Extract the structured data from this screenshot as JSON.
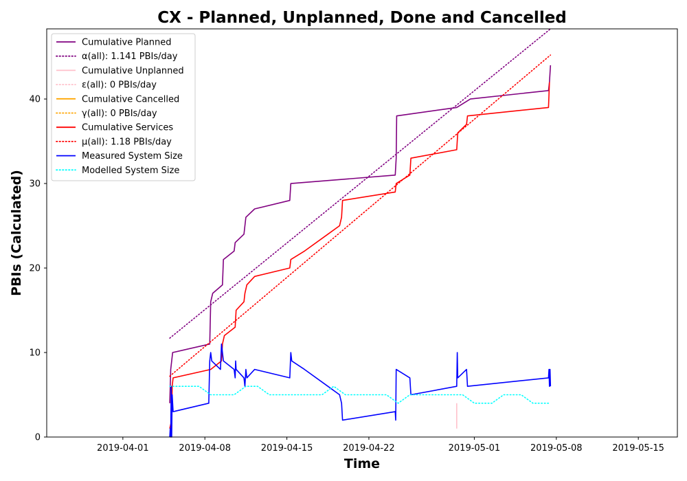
{
  "chart_data": {
    "type": "line",
    "title": "CX - Planned, Unplanned, Done  and Cancelled",
    "xlabel": "Time",
    "ylabel": "PBIs (Calculated)",
    "x_range": [
      "2019-03-25T12:00",
      "2019-05-18T08:00"
    ],
    "ylim": [
      0,
      48.3
    ],
    "x_ticks": [
      "2019-04-01",
      "2019-04-08",
      "2019-04-15",
      "2019-04-22",
      "2019-05-01",
      "2019-05-08",
      "2019-05-15"
    ],
    "y_ticks": [
      0,
      10,
      20,
      30,
      40
    ],
    "grid": false,
    "legend_position": "top-left",
    "series": [
      {
        "name": "Cumulative Planned",
        "color": "#800080",
        "style": "solid",
        "points": [
          [
            "2019-04-05T00:00",
            4
          ],
          [
            "2019-04-05T02:00",
            8
          ],
          [
            "2019-04-05T04:00",
            9
          ],
          [
            "2019-04-05T06:00",
            10
          ],
          [
            "2019-04-08T10:00",
            11
          ],
          [
            "2019-04-08T12:00",
            16
          ],
          [
            "2019-04-08T16:00",
            17
          ],
          [
            "2019-04-09T12:00",
            18
          ],
          [
            "2019-04-09T14:00",
            21
          ],
          [
            "2019-04-10T12:00",
            22
          ],
          [
            "2019-04-10T14:00",
            23
          ],
          [
            "2019-04-11T08:00",
            24
          ],
          [
            "2019-04-11T12:00",
            26
          ],
          [
            "2019-04-12T06:00",
            27
          ],
          [
            "2019-04-15T06:00",
            28
          ],
          [
            "2019-04-15T08:00",
            30
          ],
          [
            "2019-04-24T06:00",
            31
          ],
          [
            "2019-04-24T08:00",
            33
          ],
          [
            "2019-04-24T09:00",
            38
          ],
          [
            "2019-04-29T12:00",
            39
          ],
          [
            "2019-04-30T16:00",
            40
          ],
          [
            "2019-05-07T08:00",
            41
          ],
          [
            "2019-05-07T10:00",
            42
          ],
          [
            "2019-05-07T12:00",
            44
          ]
        ]
      },
      {
        "name": "α(all): 1.141 PBIs/day",
        "color": "#800080",
        "style": "dotted",
        "points": [
          [
            "2019-04-05T00:00",
            11.7
          ],
          [
            "2019-05-07T12:00",
            48.5
          ]
        ]
      },
      {
        "name": "Cumulative Unplanned",
        "color": "#ffc0cb",
        "style": "solid",
        "points": [
          [
            "2019-04-29T12:00",
            1
          ],
          [
            "2019-04-29T12:00",
            4
          ]
        ]
      },
      {
        "name": "ε(all): 0 PBIs/day",
        "color": "#ffc0cb",
        "style": "dotted",
        "points": []
      },
      {
        "name": "Cumulative Cancelled",
        "color": "#ffa500",
        "style": "solid",
        "points": []
      },
      {
        "name": "γ(all): 0 PBIs/day",
        "color": "#ffa500",
        "style": "dotted",
        "points": []
      },
      {
        "name": "Cumulative Services",
        "color": "#ff0000",
        "style": "solid",
        "points": [
          [
            "2019-04-05T00:00",
            1
          ],
          [
            "2019-04-05T04:00",
            2
          ],
          [
            "2019-04-05T05:00",
            6
          ],
          [
            "2019-04-05T07:00",
            7
          ],
          [
            "2019-04-08T12:00",
            8
          ],
          [
            "2019-04-09T10:00",
            9
          ],
          [
            "2019-04-09T12:00",
            11
          ],
          [
            "2019-04-09T16:00",
            12
          ],
          [
            "2019-04-10T14:00",
            13
          ],
          [
            "2019-04-10T16:00",
            15
          ],
          [
            "2019-04-11T08:00",
            16
          ],
          [
            "2019-04-11T10:00",
            17
          ],
          [
            "2019-04-11T14:00",
            18
          ],
          [
            "2019-04-12T06:00",
            19
          ],
          [
            "2019-04-15T06:00",
            20
          ],
          [
            "2019-04-15T08:00",
            21
          ],
          [
            "2019-04-16T12:00",
            22
          ],
          [
            "2019-04-18T12:00",
            24
          ],
          [
            "2019-04-19T12:00",
            25
          ],
          [
            "2019-04-19T16:00",
            26
          ],
          [
            "2019-04-19T18:00",
            28
          ],
          [
            "2019-04-24T06:00",
            29
          ],
          [
            "2019-04-24T08:00",
            30
          ],
          [
            "2019-04-25T12:00",
            31
          ],
          [
            "2019-04-25T14:00",
            33
          ],
          [
            "2019-04-29T12:00",
            34
          ],
          [
            "2019-04-29T14:00",
            36
          ],
          [
            "2019-04-30T08:00",
            37
          ],
          [
            "2019-04-30T10:00",
            38
          ],
          [
            "2019-05-07T08:00",
            39
          ],
          [
            "2019-05-07T10:00",
            42
          ]
        ]
      },
      {
        "name": "μ(all): 1.18 PBIs/day",
        "color": "#ff0000",
        "style": "dotted",
        "points": [
          [
            "2019-04-05T00:00",
            7.2
          ],
          [
            "2019-05-07T12:00",
            45.2
          ]
        ]
      },
      {
        "name": "Measured System Size",
        "color": "#0000ff",
        "style": "solid",
        "points": [
          [
            "2019-04-05T00:00",
            0
          ],
          [
            "2019-04-05T01:00",
            1
          ],
          [
            "2019-04-05T02:00",
            0
          ],
          [
            "2019-04-05T03:00",
            6
          ],
          [
            "2019-04-05T04:00",
            0
          ],
          [
            "2019-04-05T05:00",
            5
          ],
          [
            "2019-04-05T07:00",
            3
          ],
          [
            "2019-04-08T08:00",
            4
          ],
          [
            "2019-04-08T10:00",
            9
          ],
          [
            "2019-04-08T12:00",
            10
          ],
          [
            "2019-04-08T14:00",
            9
          ],
          [
            "2019-04-09T08:00",
            8
          ],
          [
            "2019-04-09T10:00",
            11
          ],
          [
            "2019-04-09T12:00",
            10
          ],
          [
            "2019-04-09T14:00",
            9
          ],
          [
            "2019-04-10T12:00",
            8
          ],
          [
            "2019-04-10T14:00",
            7
          ],
          [
            "2019-04-10T15:00",
            9
          ],
          [
            "2019-04-10T16:00",
            8
          ],
          [
            "2019-04-11T08:00",
            7
          ],
          [
            "2019-04-11T10:00",
            6
          ],
          [
            "2019-04-11T12:00",
            8
          ],
          [
            "2019-04-11T14:00",
            7
          ],
          [
            "2019-04-12T06:00",
            8
          ],
          [
            "2019-04-15T06:00",
            7
          ],
          [
            "2019-04-15T08:00",
            10
          ],
          [
            "2019-04-15T10:00",
            9
          ],
          [
            "2019-04-16T12:00",
            8
          ],
          [
            "2019-04-18T12:00",
            6
          ],
          [
            "2019-04-19T12:00",
            5
          ],
          [
            "2019-04-19T16:00",
            4
          ],
          [
            "2019-04-19T18:00",
            2
          ],
          [
            "2019-04-24T06:00",
            3
          ],
          [
            "2019-04-24T07:00",
            2
          ],
          [
            "2019-04-24T08:00",
            8
          ],
          [
            "2019-04-25T12:00",
            7
          ],
          [
            "2019-04-25T14:00",
            5
          ],
          [
            "2019-04-29T12:00",
            6
          ],
          [
            "2019-04-29T13:00",
            10
          ],
          [
            "2019-04-29T14:00",
            7
          ],
          [
            "2019-04-30T08:00",
            8
          ],
          [
            "2019-04-30T10:00",
            6
          ],
          [
            "2019-05-07T08:00",
            7
          ],
          [
            "2019-05-07T09:00",
            8
          ],
          [
            "2019-05-07T10:00",
            6
          ],
          [
            "2019-05-07T11:00",
            8
          ],
          [
            "2019-05-07T12:00",
            6
          ]
        ]
      },
      {
        "name": "Modelled System Size",
        "color": "#00ffff",
        "style": "dotted",
        "points": [
          [
            "2019-04-05T00:00",
            6
          ],
          [
            "2019-04-07T12:00",
            6
          ],
          [
            "2019-04-08T12:00",
            5
          ],
          [
            "2019-04-10T12:00",
            5
          ],
          [
            "2019-04-11T12:00",
            6
          ],
          [
            "2019-04-12T12:00",
            6
          ],
          [
            "2019-04-13T12:00",
            5
          ],
          [
            "2019-04-18T00:00",
            5
          ],
          [
            "2019-04-19T00:00",
            6
          ],
          [
            "2019-04-20T00:00",
            5
          ],
          [
            "2019-04-23T12:00",
            5
          ],
          [
            "2019-04-24T12:00",
            4
          ],
          [
            "2019-04-25T12:00",
            5
          ],
          [
            "2019-04-30T00:00",
            5
          ],
          [
            "2019-05-01T00:00",
            4
          ],
          [
            "2019-05-02T12:00",
            4
          ],
          [
            "2019-05-03T12:00",
            5
          ],
          [
            "2019-05-05T00:00",
            5
          ],
          [
            "2019-05-06T00:00",
            4
          ],
          [
            "2019-05-07T12:00",
            4
          ]
        ]
      }
    ]
  }
}
